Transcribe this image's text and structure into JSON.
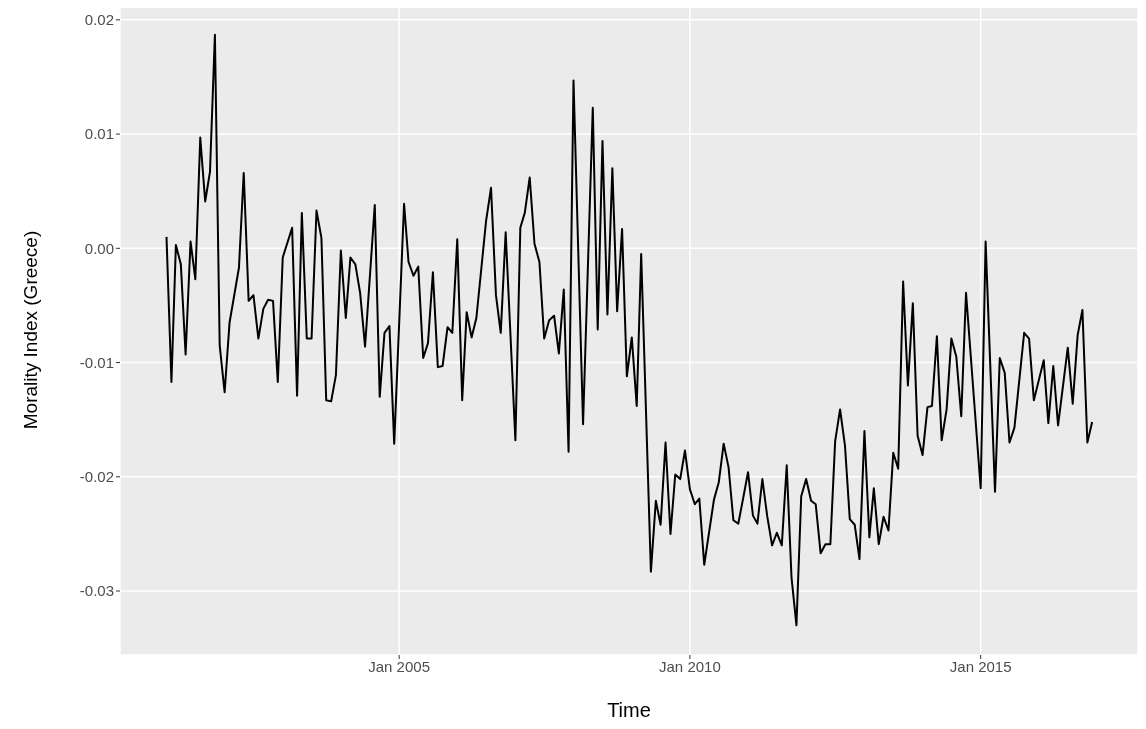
{
  "chart_data": {
    "type": "line",
    "xlabel": "Time",
    "ylabel": "Morality Index  (Greece)",
    "x": [
      "2001-01",
      "2001-02",
      "2001-03",
      "2001-04",
      "2001-05",
      "2001-06",
      "2001-07",
      "2001-08",
      "2001-09",
      "2001-10",
      "2001-11",
      "2001-12",
      "2002-01",
      "2002-02",
      "2002-04",
      "2002-05",
      "2002-06",
      "2002-07",
      "2002-08",
      "2002-09",
      "2002-10",
      "2002-11",
      "2002-12",
      "2003-01",
      "2003-03",
      "2003-04",
      "2003-05",
      "2003-06",
      "2003-07",
      "2003-08",
      "2003-09",
      "2003-10",
      "2003-11",
      "2003-12",
      "2004-01",
      "2004-02",
      "2004-03",
      "2004-04",
      "2004-05",
      "2004-06",
      "2004-08",
      "2004-09",
      "2004-10",
      "2004-11",
      "2004-12",
      "2005-02",
      "2005-03",
      "2005-04",
      "2005-05",
      "2005-06",
      "2005-07",
      "2005-08",
      "2005-09",
      "2005-10",
      "2005-11",
      "2005-12",
      "2006-01",
      "2006-02",
      "2006-03",
      "2006-04",
      "2006-05",
      "2006-07",
      "2006-08",
      "2006-09",
      "2006-10",
      "2006-11",
      "2007-01",
      "2007-02",
      "2007-03",
      "2007-04",
      "2007-05",
      "2007-06",
      "2007-07",
      "2007-08",
      "2007-09",
      "2007-10",
      "2007-11",
      "2007-12",
      "2008-01",
      "2008-03",
      "2008-05",
      "2008-06",
      "2008-07",
      "2008-08",
      "2008-09",
      "2008-10",
      "2008-11",
      "2008-12",
      "2009-01",
      "2009-02",
      "2009-03",
      "2009-05",
      "2009-06",
      "2009-07",
      "2009-08",
      "2009-09",
      "2009-10",
      "2009-11",
      "2009-12",
      "2010-01",
      "2010-02",
      "2010-03",
      "2010-04",
      "2010-06",
      "2010-07",
      "2010-08",
      "2010-09",
      "2010-10",
      "2010-11",
      "2010-12",
      "2011-01",
      "2011-02",
      "2011-03",
      "2011-04",
      "2011-05",
      "2011-06",
      "2011-07",
      "2011-08",
      "2011-09",
      "2011-10",
      "2011-11",
      "2011-12",
      "2012-01",
      "2012-02",
      "2012-03",
      "2012-04",
      "2012-05",
      "2012-06",
      "2012-07",
      "2012-08",
      "2012-09",
      "2012-10",
      "2012-11",
      "2012-12",
      "2013-01",
      "2013-02",
      "2013-03",
      "2013-04",
      "2013-05",
      "2013-06",
      "2013-07",
      "2013-08",
      "2013-09",
      "2013-10",
      "2013-11",
      "2013-12",
      "2014-01",
      "2014-02",
      "2014-03",
      "2014-04",
      "2014-05",
      "2014-06",
      "2014-07",
      "2014-08",
      "2014-09",
      "2014-10",
      "2015-01",
      "2015-02",
      "2015-04",
      "2015-05",
      "2015-06",
      "2015-07",
      "2015-08",
      "2015-10",
      "2015-11",
      "2015-12",
      "2016-02",
      "2016-03",
      "2016-04",
      "2016-05",
      "2016-07",
      "2016-08",
      "2016-09",
      "2016-10",
      "2016-11",
      "2016-12"
    ],
    "values": [
      0.001,
      -0.0117,
      0.0003,
      -0.0014,
      -0.0093,
      0.0006,
      -0.0027,
      0.0097,
      0.0041,
      0.0067,
      0.0187,
      -0.0085,
      -0.0126,
      -0.0065,
      -0.0017,
      0.0066,
      -0.0046,
      -0.0041,
      -0.0079,
      -0.0053,
      -0.0045,
      -0.0046,
      -0.0117,
      -0.0008,
      0.0018,
      -0.0129,
      0.0031,
      -0.0079,
      -0.0079,
      0.0033,
      0.0009,
      -0.0133,
      -0.0134,
      -0.0111,
      -0.0002,
      -0.0061,
      -0.0008,
      -0.0014,
      -0.0039,
      -0.0086,
      0.0038,
      -0.013,
      -0.0074,
      -0.0068,
      -0.0171,
      0.0039,
      -0.0012,
      -0.0024,
      -0.0016,
      -0.0096,
      -0.0083,
      -0.0021,
      -0.0104,
      -0.0103,
      -0.0069,
      -0.0074,
      0.0008,
      -0.0133,
      -0.0056,
      -0.0078,
      -0.0061,
      0.0024,
      0.0053,
      -0.0041,
      -0.0074,
      0.0014,
      -0.0168,
      0.0018,
      0.0031,
      0.0062,
      0.0004,
      -0.0012,
      -0.0079,
      -0.0063,
      -0.0059,
      -0.0092,
      -0.0036,
      -0.0178,
      0.0147,
      -0.0154,
      0.0123,
      -0.0071,
      0.0094,
      -0.0058,
      0.007,
      -0.0055,
      0.0017,
      -0.0112,
      -0.0078,
      -0.0138,
      -0.0005,
      -0.0283,
      -0.0221,
      -0.0242,
      -0.017,
      -0.025,
      -0.0198,
      -0.0202,
      -0.0177,
      -0.0211,
      -0.0224,
      -0.0219,
      -0.0277,
      -0.022,
      -0.0205,
      -0.0171,
      -0.0192,
      -0.0238,
      -0.0241,
      -0.0219,
      -0.0196,
      -0.0234,
      -0.0241,
      -0.0202,
      -0.0234,
      -0.026,
      -0.0249,
      -0.026,
      -0.019,
      -0.0288,
      -0.033,
      -0.0217,
      -0.0202,
      -0.0221,
      -0.0224,
      -0.0267,
      -0.0259,
      -0.0259,
      -0.0169,
      -0.0141,
      -0.0173,
      -0.0237,
      -0.0242,
      -0.0272,
      -0.016,
      -0.0253,
      -0.021,
      -0.0259,
      -0.0235,
      -0.0247,
      -0.0179,
      -0.0193,
      -0.0029,
      -0.012,
      -0.0048,
      -0.0164,
      -0.0181,
      -0.0139,
      -0.0138,
      -0.0077,
      -0.0168,
      -0.0141,
      -0.0079,
      -0.0095,
      -0.0147,
      -0.0039,
      -0.021,
      0.0006,
      -0.0213,
      -0.0096,
      -0.0109,
      -0.017,
      -0.0157,
      -0.0074,
      -0.0079,
      -0.0133,
      -0.0098,
      -0.0153,
      -0.0103,
      -0.0155,
      -0.0087,
      -0.0136,
      -0.0076,
      -0.0054,
      -0.017,
      -0.0152
    ],
    "color": "#000000",
    "marker": "none",
    "line_style": "solid",
    "grid": true,
    "xlim": [
      "2000-03-15",
      "2017-09-15"
    ],
    "xticks": [
      {
        "value": "2005-01",
        "label": "Jan 2005"
      },
      {
        "value": "2010-01",
        "label": "Jan 2010"
      },
      {
        "value": "2015-01",
        "label": "Jan 2015"
      }
    ],
    "ylim": [
      -0.0356,
      0.0213
    ],
    "yticks": [
      -0.03,
      -0.02,
      -0.01,
      {
        "value": 0,
        "label": "0.00"
      },
      0.01,
      0.02
    ]
  }
}
